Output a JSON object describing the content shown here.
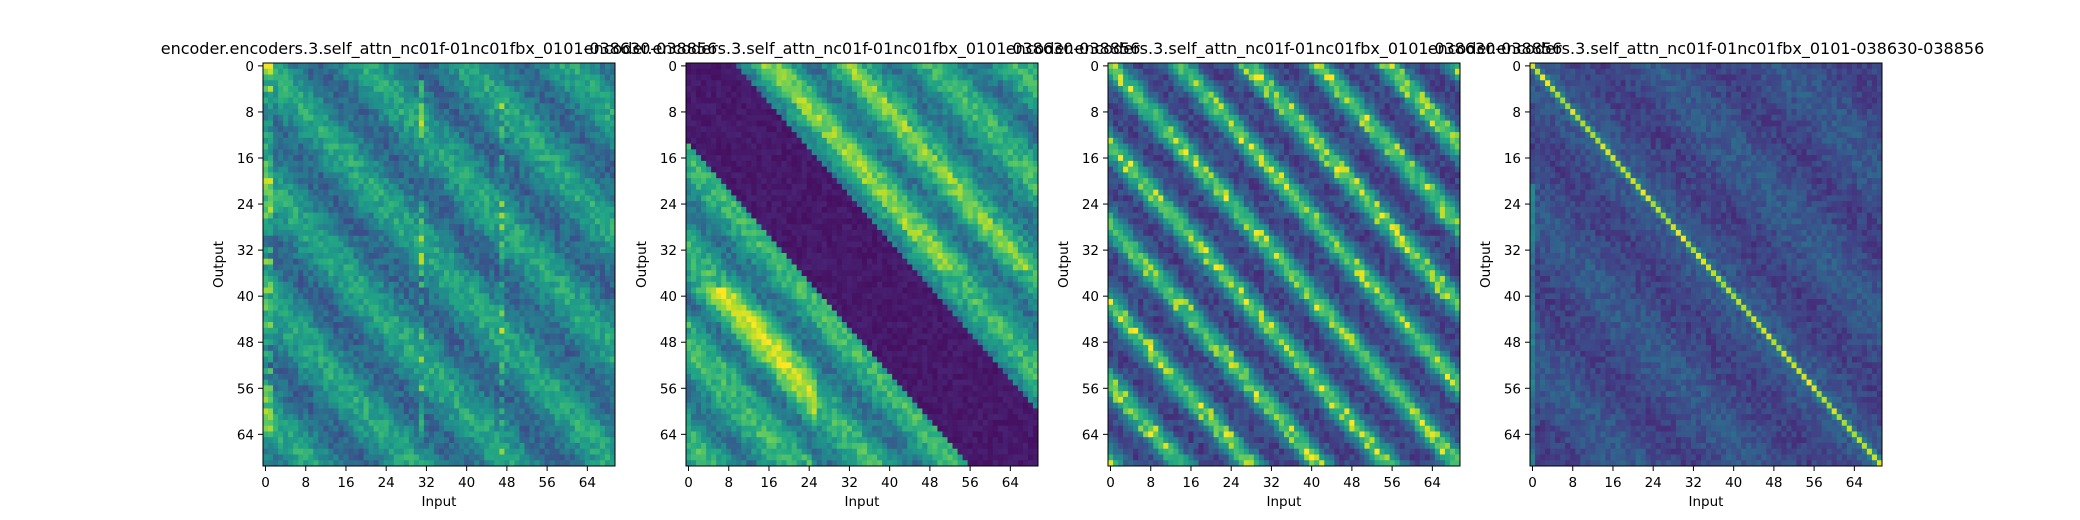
{
  "figure": {
    "background": "#ffffff",
    "colormap": "viridis"
  },
  "chart_data": [
    {
      "type": "heatmap",
      "title": "encoder.encoders.3.self_attn_nc01f-01nc01fbx_0101-038630-038856",
      "xlabel": "Input",
      "ylabel": "Output",
      "xticks": [
        "0",
        "8",
        "16",
        "24",
        "32",
        "40",
        "48",
        "56",
        "64"
      ],
      "yticks": [
        "0",
        "8",
        "16",
        "24",
        "32",
        "40",
        "48",
        "56",
        "64"
      ],
      "rows": 70,
      "cols": 70,
      "pattern": "head0_diagonal_bands_bright_left_column",
      "colormap": "viridis",
      "vmin": 0,
      "vmax": 1
    },
    {
      "type": "heatmap",
      "title": "encoder.encoders.3.self_attn_nc01f-01nc01fbx_0101-038630-038856",
      "xlabel": "Input",
      "ylabel": "Output",
      "xticks": [
        "0",
        "8",
        "16",
        "24",
        "32",
        "40",
        "48",
        "56",
        "64"
      ],
      "yticks": [
        "0",
        "8",
        "16",
        "24",
        "32",
        "40",
        "48",
        "56",
        "64"
      ],
      "rows": 70,
      "cols": 70,
      "pattern": "head1_dark_main_diagonal_band_bright_offdiagonal_blobs",
      "colormap": "viridis",
      "vmin": 0,
      "vmax": 1
    },
    {
      "type": "heatmap",
      "title": "encoder.encoders.3.self_attn_nc01f-01nc01fbx_0101-038630-038856",
      "xlabel": "Input",
      "ylabel": "Output",
      "xticks": [
        "0",
        "8",
        "16",
        "24",
        "32",
        "40",
        "48",
        "56",
        "64"
      ],
      "yticks": [
        "0",
        "8",
        "16",
        "24",
        "32",
        "40",
        "48",
        "56",
        "64"
      ],
      "rows": 70,
      "cols": 70,
      "pattern": "head2_alternating_diagonal_bands",
      "colormap": "viridis",
      "vmin": 0,
      "vmax": 1
    },
    {
      "type": "heatmap",
      "title": "encoder.encoders.3.self_attn_nc01f-01nc01fbx_0101-038630-038856",
      "xlabel": "Input",
      "ylabel": "Output",
      "xticks": [
        "0",
        "8",
        "16",
        "24",
        "32",
        "40",
        "48",
        "56",
        "64"
      ],
      "yticks": [
        "0",
        "8",
        "16",
        "24",
        "32",
        "40",
        "48",
        "56",
        "64"
      ],
      "rows": 70,
      "cols": 70,
      "pattern": "head3_bright_main_diagonal_dark_background",
      "colormap": "viridis",
      "vmin": 0,
      "vmax": 1
    }
  ]
}
